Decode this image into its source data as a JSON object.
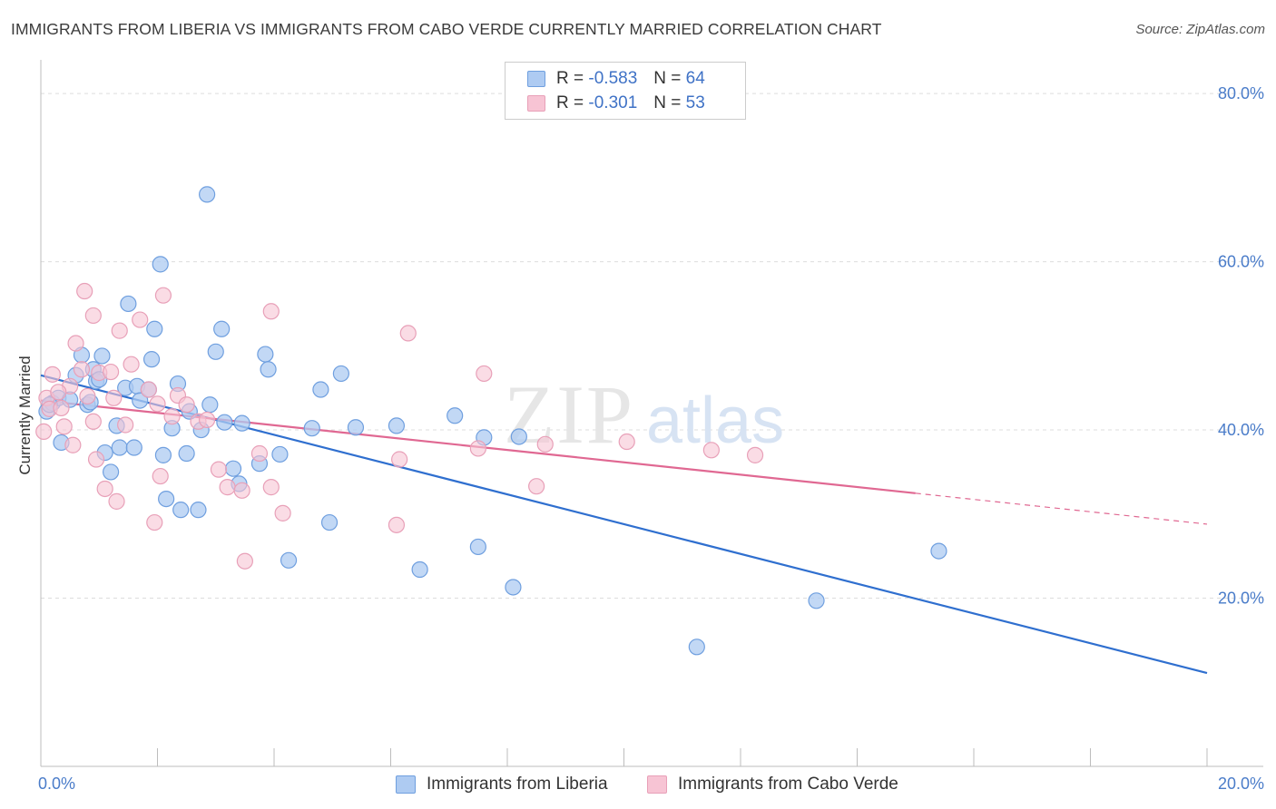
{
  "title": "IMMIGRANTS FROM LIBERIA VS IMMIGRANTS FROM CABO VERDE CURRENTLY MARRIED CORRELATION CHART",
  "source": "Source: ZipAtlas.com",
  "watermark": {
    "zip": "ZIP",
    "atlas": "atlas"
  },
  "legend": {
    "r_label": "R =",
    "n_label": "N =",
    "series1": {
      "r": "-0.583",
      "n": "64"
    },
    "series2": {
      "r": "-0.301",
      "n": "53"
    }
  },
  "colors": {
    "liberia_fill": "#aecbf2",
    "liberia_stroke": "#6f9fdf",
    "liberia_line": "#2f6fcf",
    "cabo_fill": "#f7c4d4",
    "cabo_stroke": "#e8a0b8",
    "cabo_line": "#e06892",
    "tick_text": "#4a7cc9",
    "grid": "#dddddd"
  },
  "chart_data": {
    "type": "scatter",
    "title": "IMMIGRANTS FROM LIBERIA VS IMMIGRANTS FROM CABO VERDE CURRENTLY MARRIED CORRELATION CHART",
    "xlabel": "",
    "ylabel": "Currently Married",
    "xlim": [
      0,
      20
    ],
    "ylim": [
      0,
      84
    ],
    "x_tick_labels": [
      "0.0%",
      "20.0%"
    ],
    "y_ticks": [
      20,
      40,
      60,
      80
    ],
    "y_tick_labels": [
      "20.0%",
      "40.0%",
      "60.0%",
      "80.0%"
    ],
    "legend_position": "top-center",
    "series": [
      {
        "name": "Immigrants from Liberia",
        "r": -0.583,
        "n": 64,
        "trend": {
          "x": [
            0,
            20
          ],
          "y": [
            46.5,
            11.1
          ],
          "solid_until": 20
        },
        "points": [
          [
            0.1,
            42.2
          ],
          [
            0.2,
            43.2
          ],
          [
            0.3,
            43.8
          ],
          [
            0.35,
            38.5
          ],
          [
            0.5,
            43.6
          ],
          [
            0.6,
            46.5
          ],
          [
            0.7,
            48.9
          ],
          [
            0.8,
            43.0
          ],
          [
            0.85,
            43.3
          ],
          [
            0.9,
            47.2
          ],
          [
            0.95,
            45.8
          ],
          [
            1.05,
            48.8
          ],
          [
            1.1,
            37.3
          ],
          [
            1.2,
            35.0
          ],
          [
            1.3,
            40.5
          ],
          [
            1.35,
            37.9
          ],
          [
            1.45,
            45.0
          ],
          [
            1.5,
            55.0
          ],
          [
            1.6,
            37.9
          ],
          [
            1.65,
            45.2
          ],
          [
            1.7,
            43.5
          ],
          [
            1.85,
            44.8
          ],
          [
            1.9,
            48.4
          ],
          [
            1.95,
            52.0
          ],
          [
            2.05,
            59.7
          ],
          [
            2.1,
            37.0
          ],
          [
            2.15,
            31.8
          ],
          [
            2.25,
            40.2
          ],
          [
            2.35,
            45.5
          ],
          [
            2.4,
            30.5
          ],
          [
            2.5,
            37.2
          ],
          [
            2.55,
            42.2
          ],
          [
            2.7,
            30.5
          ],
          [
            2.75,
            40.0
          ],
          [
            2.85,
            68.0
          ],
          [
            2.9,
            43.0
          ],
          [
            3.0,
            49.3
          ],
          [
            3.1,
            52.0
          ],
          [
            3.15,
            40.9
          ],
          [
            3.3,
            35.4
          ],
          [
            3.4,
            33.6
          ],
          [
            3.45,
            40.8
          ],
          [
            3.75,
            36.0
          ],
          [
            3.85,
            49.0
          ],
          [
            3.9,
            47.2
          ],
          [
            4.1,
            37.1
          ],
          [
            4.25,
            24.5
          ],
          [
            4.65,
            40.2
          ],
          [
            4.8,
            44.8
          ],
          [
            4.95,
            29.0
          ],
          [
            5.15,
            46.7
          ],
          [
            5.4,
            40.3
          ],
          [
            6.1,
            40.5
          ],
          [
            6.5,
            23.4
          ],
          [
            7.1,
            41.7
          ],
          [
            7.5,
            26.1
          ],
          [
            7.6,
            39.1
          ],
          [
            8.1,
            21.3
          ],
          [
            8.2,
            39.2
          ],
          [
            11.25,
            14.2
          ],
          [
            13.3,
            19.7
          ],
          [
            15.4,
            25.6
          ],
          [
            0.15,
            43.0
          ],
          [
            1.0,
            46.0
          ]
        ]
      },
      {
        "name": "Immigrants from Cabo Verde",
        "r": -0.301,
        "n": 53,
        "trend": {
          "x": [
            0,
            20
          ],
          "y": [
            43.5,
            28.8
          ],
          "solid_until": 15.0
        },
        "points": [
          [
            0.05,
            39.8
          ],
          [
            0.1,
            43.8
          ],
          [
            0.15,
            42.5
          ],
          [
            0.2,
            46.6
          ],
          [
            0.35,
            42.6
          ],
          [
            0.4,
            40.4
          ],
          [
            0.5,
            45.2
          ],
          [
            0.55,
            38.2
          ],
          [
            0.6,
            50.3
          ],
          [
            0.7,
            47.2
          ],
          [
            0.75,
            56.5
          ],
          [
            0.8,
            44.0
          ],
          [
            0.9,
            41.0
          ],
          [
            0.9,
            53.6
          ],
          [
            0.95,
            36.5
          ],
          [
            1.0,
            46.8
          ],
          [
            1.1,
            33.0
          ],
          [
            1.2,
            46.9
          ],
          [
            1.25,
            43.8
          ],
          [
            1.3,
            31.5
          ],
          [
            1.35,
            51.8
          ],
          [
            1.45,
            40.6
          ],
          [
            1.55,
            47.8
          ],
          [
            1.7,
            53.1
          ],
          [
            1.85,
            44.8
          ],
          [
            1.95,
            29.0
          ],
          [
            2.0,
            43.1
          ],
          [
            2.05,
            34.5
          ],
          [
            2.1,
            56.0
          ],
          [
            2.25,
            41.6
          ],
          [
            2.35,
            44.1
          ],
          [
            2.5,
            43.0
          ],
          [
            2.7,
            41.0
          ],
          [
            2.85,
            41.2
          ],
          [
            3.05,
            35.3
          ],
          [
            3.2,
            33.2
          ],
          [
            3.5,
            24.4
          ],
          [
            3.45,
            32.8
          ],
          [
            3.75,
            37.2
          ],
          [
            3.95,
            33.2
          ],
          [
            3.95,
            54.1
          ],
          [
            4.15,
            30.1
          ],
          [
            6.1,
            28.7
          ],
          [
            6.15,
            36.5
          ],
          [
            6.3,
            51.5
          ],
          [
            7.5,
            37.8
          ],
          [
            7.6,
            46.7
          ],
          [
            8.5,
            33.3
          ],
          [
            8.65,
            38.3
          ],
          [
            10.05,
            38.6
          ],
          [
            11.5,
            37.6
          ],
          [
            12.25,
            37.0
          ],
          [
            0.3,
            44.5
          ]
        ]
      }
    ]
  },
  "bottom_legend": {
    "series1": "Immigrants from Liberia",
    "series2": "Immigrants from Cabo Verde"
  }
}
